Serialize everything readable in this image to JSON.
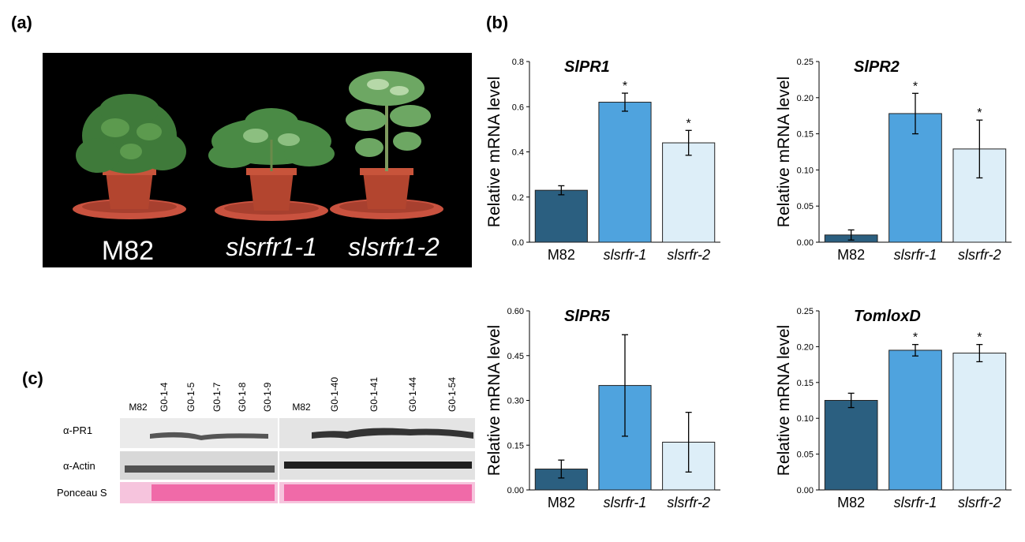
{
  "panels": {
    "a": "(a)",
    "b": "(b)",
    "c": "(c)"
  },
  "photo": {
    "labels": [
      "M82",
      "slsrfr1-1",
      "slsrfr1-2"
    ]
  },
  "blot": {
    "lanes_left": [
      "M82",
      "G0-1-4",
      "G0-1-5",
      "G0-1-7",
      "G0-1-8",
      "G0-1-9"
    ],
    "lanes_right": [
      "M82",
      "G0-1-40",
      "G0-1-41",
      "G0-1-44",
      "G0-1-54"
    ],
    "rows": [
      "α-PR1",
      "α-Actin",
      "Ponceau S"
    ]
  },
  "colors": {
    "bar_dark": "#2b5f80",
    "bar_mid": "#4fa3de",
    "bar_light": "#ddeef8",
    "ponceau": "#f06aa8"
  },
  "chart_data": [
    {
      "type": "bar",
      "title": "SlPR1",
      "ylabel": "Relative mRNA level",
      "categories": [
        "M82",
        "slsrfr-1",
        "slsrfr-2"
      ],
      "values": [
        0.23,
        0.62,
        0.44
      ],
      "errors": [
        0.02,
        0.04,
        0.055
      ],
      "significant": [
        false,
        true,
        true
      ],
      "ylim": [
        0,
        0.8
      ],
      "yticks": [
        "0.0",
        "0.2",
        "0.4",
        "0.6",
        "0.8"
      ]
    },
    {
      "type": "bar",
      "title": "SlPR2",
      "ylabel": "Relative mRNA level",
      "categories": [
        "M82",
        "slsrfr-1",
        "slsrfr-2"
      ],
      "values": [
        0.01,
        0.178,
        0.129
      ],
      "errors": [
        0.007,
        0.028,
        0.04
      ],
      "significant": [
        false,
        true,
        true
      ],
      "ylim": [
        0,
        0.25
      ],
      "yticks": [
        "0.00",
        "0.05",
        "0.10",
        "0.15",
        "0.20",
        "0.25"
      ]
    },
    {
      "type": "bar",
      "title": "SlPR5",
      "ylabel": "Relative mRNA level",
      "categories": [
        "M82",
        "slsrfr-1",
        "slsrfr-2"
      ],
      "values": [
        0.07,
        0.35,
        0.16
      ],
      "errors": [
        0.03,
        0.17,
        0.1
      ],
      "significant": [
        false,
        false,
        false
      ],
      "ylim": [
        0,
        0.6
      ],
      "yticks": [
        "0.00",
        "0.15",
        "0.30",
        "0.45",
        "0.60"
      ]
    },
    {
      "type": "bar",
      "title": "TomloxD",
      "ylabel": "Relative mRNA level",
      "categories": [
        "M82",
        "slsrfr-1",
        "slsrfr-2"
      ],
      "values": [
        0.125,
        0.195,
        0.191
      ],
      "errors": [
        0.01,
        0.008,
        0.012
      ],
      "significant": [
        false,
        true,
        true
      ],
      "ylim": [
        0,
        0.25
      ],
      "yticks": [
        "0.00",
        "0.05",
        "0.10",
        "0.15",
        "0.20",
        "0.25"
      ]
    }
  ]
}
